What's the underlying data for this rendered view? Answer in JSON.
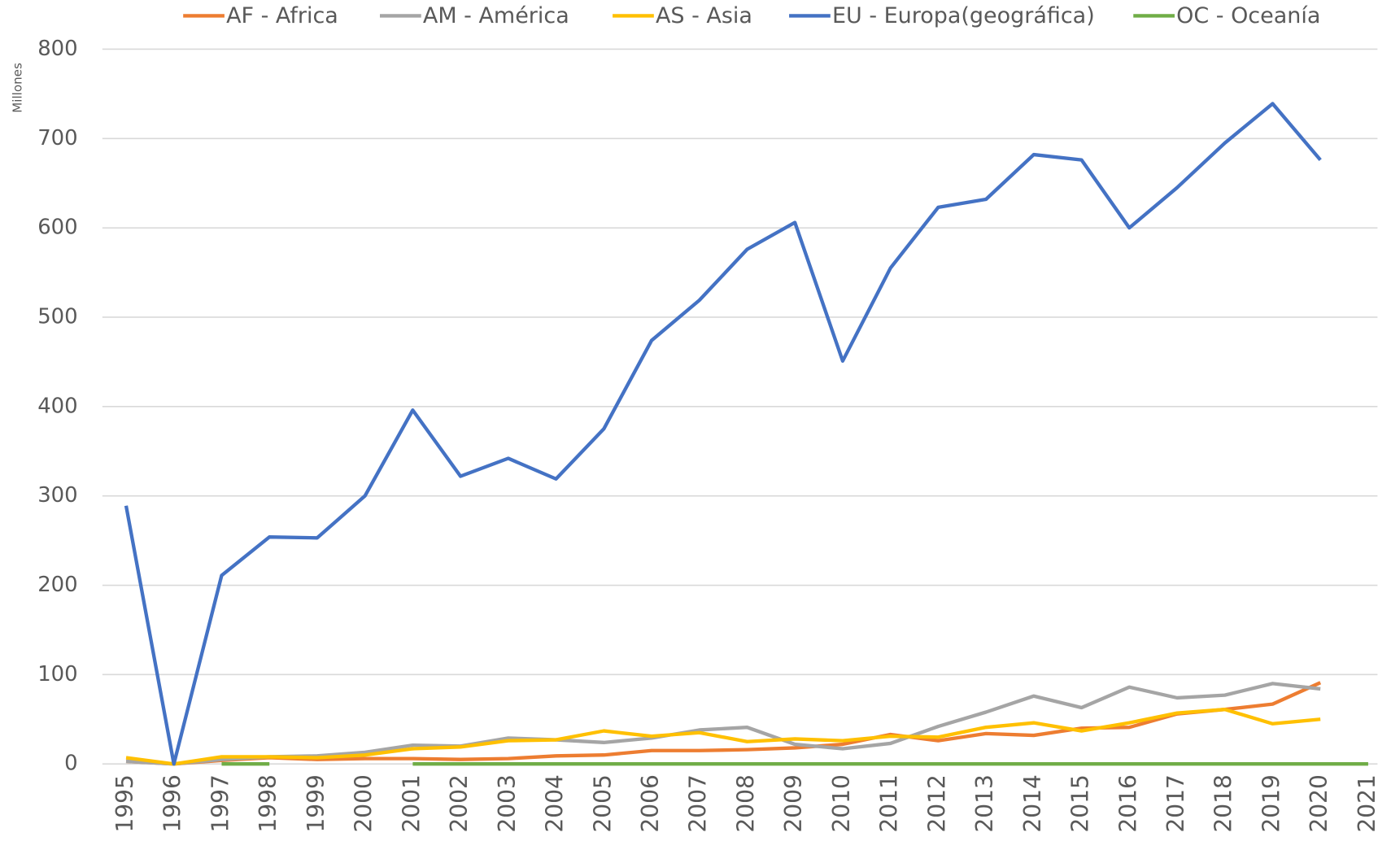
{
  "chart_data": {
    "type": "line",
    "y_label": "Millones",
    "categories": [
      "1995",
      "1996",
      "1997",
      "1998",
      "1999",
      "2000",
      "2001",
      "2002",
      "2003",
      "2004",
      "2005",
      "2006",
      "2007",
      "2008",
      "2009",
      "2010",
      "2011",
      "2012",
      "2013",
      "2014",
      "2015",
      "2016",
      "2017",
      "2018",
      "2019",
      "2020",
      "2021"
    ],
    "series": [
      {
        "name": "AF - Africa",
        "color": "#ed7d31",
        "values": [
          3,
          0,
          4,
          7,
          5,
          6,
          6,
          5,
          6,
          9,
          10,
          15,
          15,
          16,
          18,
          22,
          33,
          26,
          34,
          32,
          40,
          41,
          56,
          61,
          67,
          91,
          null
        ]
      },
      {
        "name": "AM - América",
        "color": "#a5a5a5",
        "values": [
          3,
          0,
          5,
          8,
          9,
          13,
          21,
          20,
          29,
          27,
          24,
          29,
          38,
          41,
          22,
          17,
          23,
          42,
          58,
          76,
          63,
          86,
          74,
          77,
          90,
          84,
          null
        ]
      },
      {
        "name": "AS - Asia",
        "color": "#ffc000",
        "values": [
          7,
          0,
          8,
          8,
          7,
          10,
          17,
          19,
          26,
          27,
          37,
          31,
          35,
          25,
          28,
          26,
          31,
          30,
          41,
          46,
          37,
          46,
          57,
          61,
          45,
          50,
          null
        ]
      },
      {
        "name": "EU - Europa(geográfica)",
        "color": "#4472c4",
        "values": [
          289,
          0,
          211,
          254,
          253,
          300,
          396,
          322,
          342,
          319,
          375,
          474,
          519,
          576,
          606,
          451,
          555,
          623,
          632,
          682,
          676,
          600,
          645,
          695,
          739,
          676,
          null
        ]
      },
      {
        "name": "OC - Oceanía",
        "color": "#70ad47",
        "values": [
          null,
          null,
          0,
          0,
          null,
          null,
          0,
          0,
          0,
          0,
          0,
          0,
          0,
          0,
          0,
          0,
          0,
          0,
          0,
          0,
          0,
          0,
          0,
          0,
          0,
          0,
          0
        ]
      }
    ],
    "ylim": [
      0,
      800
    ],
    "yticks": [
      0,
      100,
      200,
      300,
      400,
      500,
      600,
      700,
      800
    ],
    "grid": true,
    "legend": "top"
  }
}
